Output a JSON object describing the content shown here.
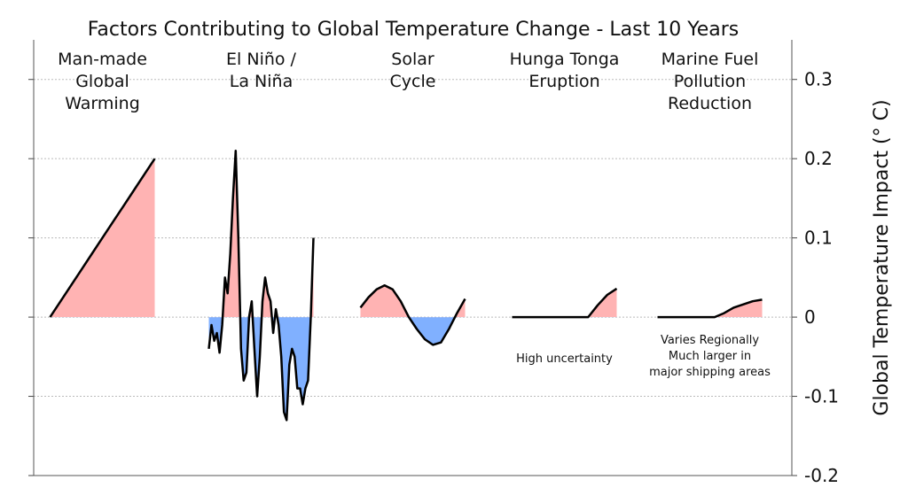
{
  "chart_data": {
    "type": "panel-area",
    "title": "Factors Contributing to Global Temperature Change - Last 10 Years",
    "y_label": "Global Temperature Impact (° C)",
    "ylim": [
      -0.2,
      0.35
    ],
    "yticks": [
      -0.2,
      -0.1,
      0,
      0.1,
      0.2,
      0.3
    ],
    "grid": true,
    "positive_color": "#ffb3b3",
    "negative_color": "#80b0ff",
    "line_color": "#000000",
    "series": [
      {
        "name": "Man-made\nGlobal\nWarming",
        "values": [
          0,
          0.02,
          0.04,
          0.06,
          0.08,
          0.1,
          0.12,
          0.14,
          0.16,
          0.18,
          0.2
        ]
      },
      {
        "name": "El Niño /\nLa Niña",
        "values": [
          -0.04,
          -0.01,
          -0.03,
          -0.02,
          -0.045,
          -0.01,
          0.05,
          0.03,
          0.08,
          0.15,
          0.21,
          0.1,
          -0.04,
          -0.08,
          -0.07,
          0,
          0.02,
          -0.04,
          -0.1,
          -0.05,
          0.02,
          0.05,
          0.03,
          0.02,
          -0.02,
          0.01,
          -0.01,
          -0.05,
          -0.12,
          -0.13,
          -0.06,
          -0.04,
          -0.05,
          -0.09,
          -0.09,
          -0.11,
          -0.09,
          -0.08,
          0,
          0.1
        ]
      },
      {
        "name": "Solar\nCycle",
        "values": [
          0.012,
          0.025,
          0.035,
          0.04,
          0.035,
          0.02,
          0,
          -0.015,
          -0.028,
          -0.035,
          -0.032,
          -0.015,
          0.005,
          0.023
        ]
      },
      {
        "name": "Hunga Tonga\nEruption",
        "values": [
          0,
          0,
          0,
          0,
          0,
          0,
          0,
          0,
          0,
          0.015,
          0.028,
          0.036
        ],
        "note": "High uncertainty"
      },
      {
        "name": "Marine Fuel\nPollution\nReduction",
        "values": [
          0,
          0,
          0,
          0,
          0,
          0,
          0,
          0.005,
          0.012,
          0.016,
          0.02,
          0.022
        ],
        "note": "Varies Regionally\nMuch larger in\nmajor shipping areas"
      }
    ]
  }
}
